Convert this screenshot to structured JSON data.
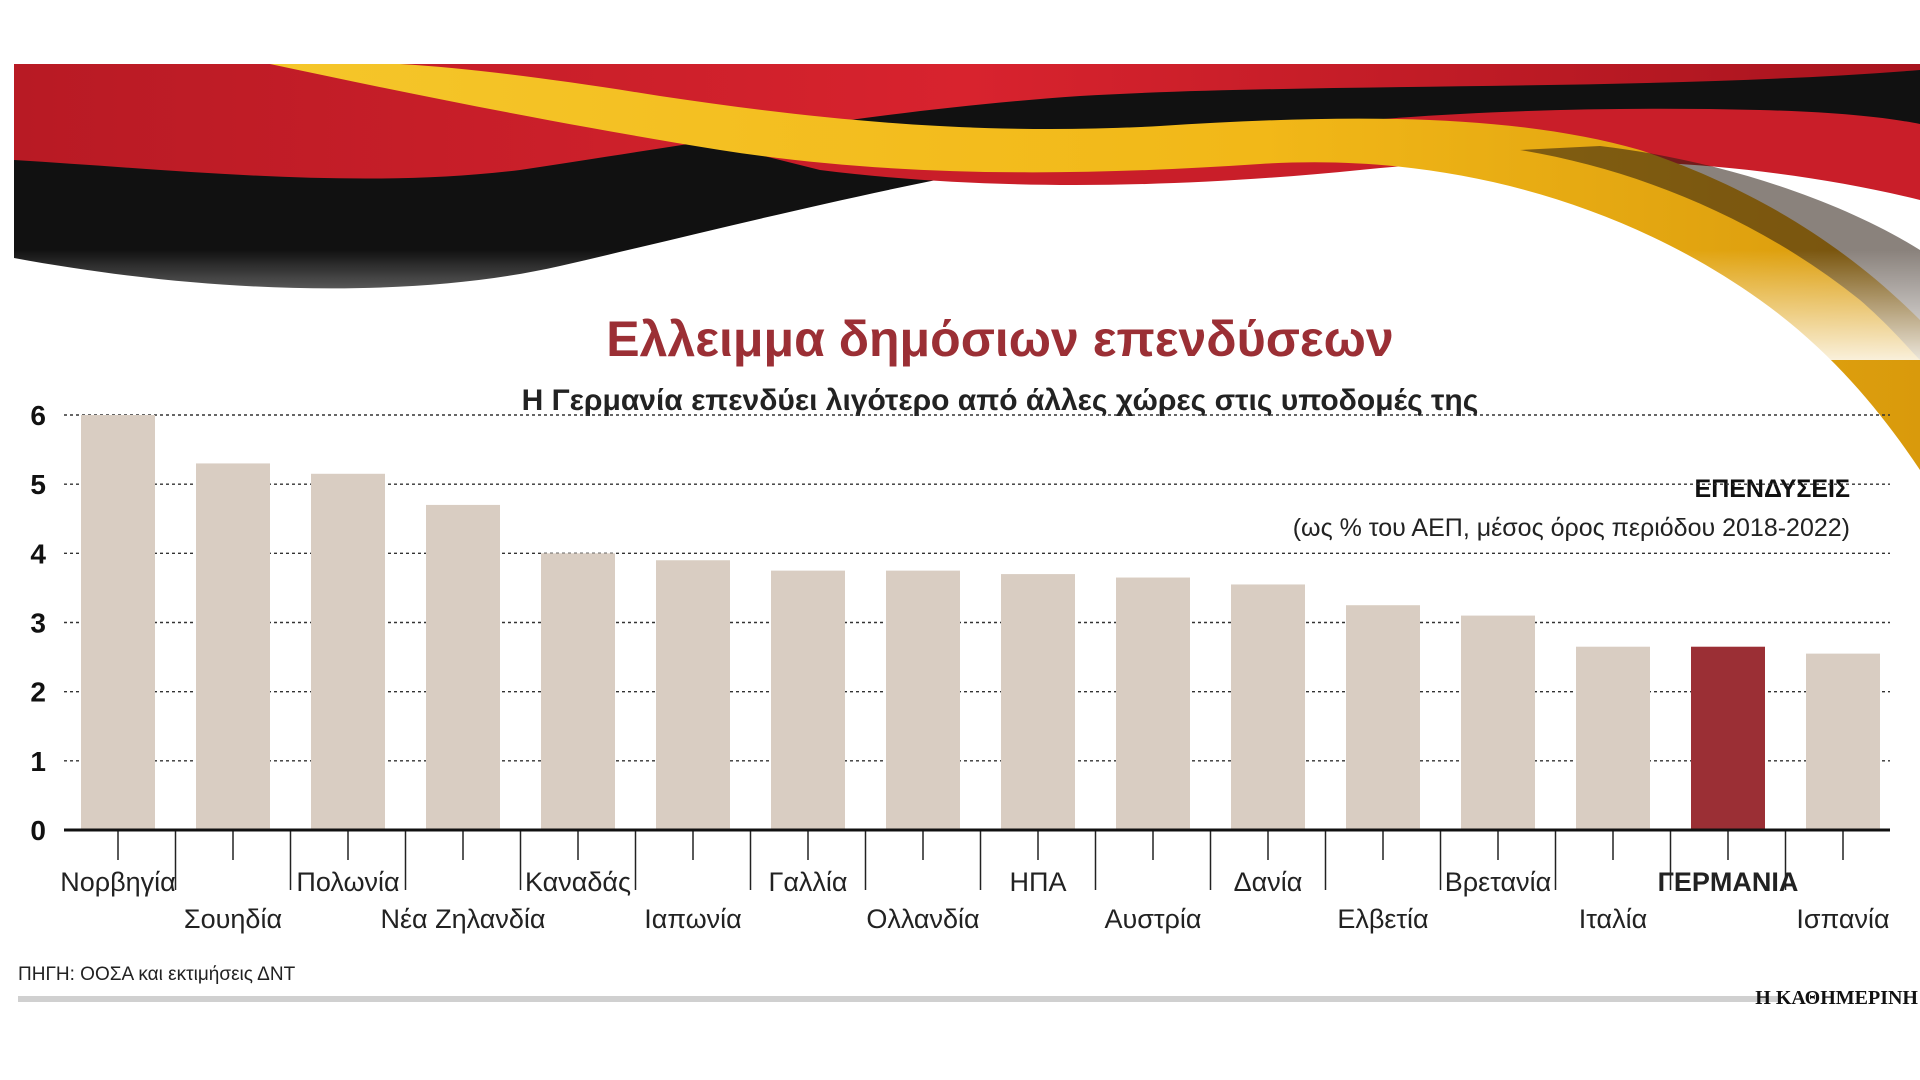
{
  "header": {
    "title": "Ελλειμμα δημόσιων επενδύσεων",
    "subtitle": "Η Γερμανία επενδύει λιγότερο από άλλες χώρες στις υποδομές της"
  },
  "legend": {
    "heading": "ΕΠΕΝΔΥΣΕΙΣ",
    "note": "(ως % του ΑΕΠ, μέσος όρος περιόδου 2018-2022)"
  },
  "footer": {
    "source": "ΠΗΓΗ: ΟΟΣΑ και εκτιμήσεις ΔΝΤ",
    "brand": "Η ΚΑΘΗΜΕΡΙΝΗ"
  },
  "colors": {
    "title": "#9b2f35",
    "bar": "#d9cdc2",
    "highlight": "#9b2f35",
    "flag_black": "#111111",
    "flag_red": "#cc1f2a",
    "flag_gold": "#f3bd1b"
  },
  "chart_data": {
    "type": "bar",
    "title": "Ελλειμμα δημόσιων επενδύσεων",
    "subtitle": "Η Γερμανία επενδύει λιγότερο από άλλες χώρες στις υποδομές της",
    "ylabel": "",
    "xlabel": "",
    "ylim": [
      0,
      6
    ],
    "yticks": [
      0,
      1,
      2,
      3,
      4,
      5,
      6
    ],
    "grid": true,
    "highlight": "ΓΕΡΜΑΝΙΑ",
    "categories": [
      "Νορβηγία",
      "Σουηδία",
      "Πολωνία",
      "Νέα Ζηλανδία",
      "Καναδάς",
      "Ιαπωνία",
      "Γαλλία",
      "Ολλανδία",
      "ΗΠΑ",
      "Αυστρία",
      "Δανία",
      "Ελβετία",
      "Βρετανία",
      "Ιταλία",
      "ΓΕΡΜΑΝΙΑ",
      "Ισπανία"
    ],
    "values": [
      6.0,
      5.3,
      5.15,
      4.7,
      4.0,
      3.9,
      3.75,
      3.75,
      3.7,
      3.65,
      3.55,
      3.25,
      3.1,
      2.65,
      2.65,
      2.55
    ]
  }
}
